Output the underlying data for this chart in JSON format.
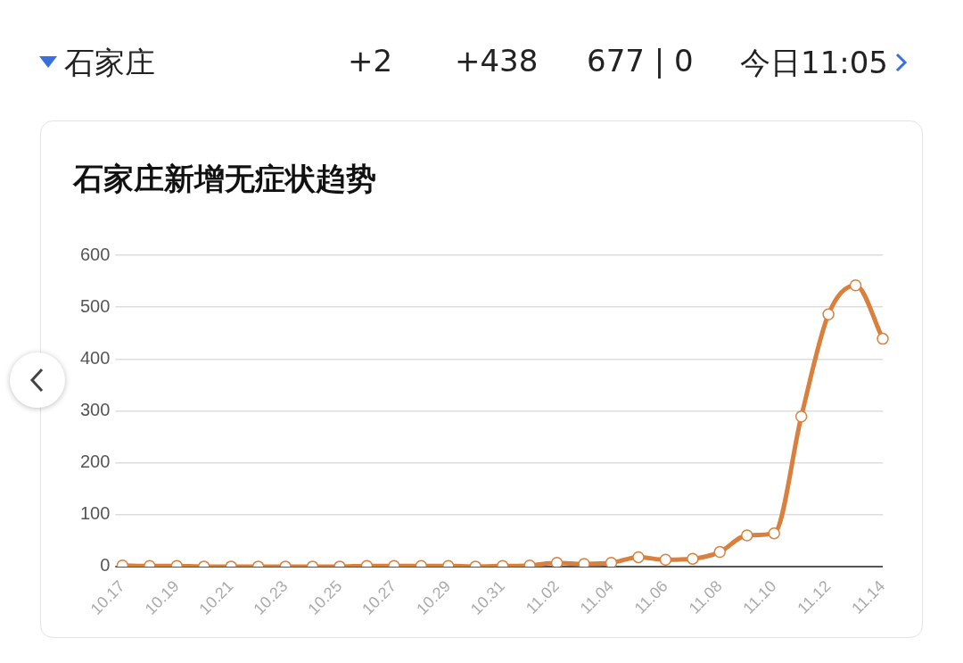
{
  "chart_data": {
    "type": "line",
    "title": "石家庄新增无症状趋势",
    "annotations": [
      "石家庄",
      "+2",
      "+438",
      "677 | 0",
      "今日11:05"
    ],
    "categories": [
      "10.17",
      null,
      "10.19",
      null,
      "10.21",
      null,
      "10.23",
      null,
      "10.25",
      null,
      "10.27",
      null,
      "10.29",
      null,
      "10.31",
      null,
      "11.02",
      null,
      "11.04",
      null,
      "11.06",
      null,
      "11.08",
      null,
      "11.10",
      null,
      "11.12",
      null,
      "11.14"
    ],
    "series": [
      {
        "color": "#d9803f",
        "values": [
          2,
          1,
          1,
          0,
          0,
          0,
          0,
          0,
          0,
          1,
          1,
          1,
          1,
          0,
          1,
          2,
          7,
          5,
          7,
          18,
          13,
          15,
          28,
          60,
          64,
          289,
          486,
          542,
          439
        ]
      }
    ],
    "ylim": [
      0,
      600
    ],
    "yticks": [
      0,
      100,
      200,
      300,
      400,
      500,
      600
    ],
    "grid": "y",
    "legend": false,
    "marker": "circle",
    "line_style": "solid"
  }
}
